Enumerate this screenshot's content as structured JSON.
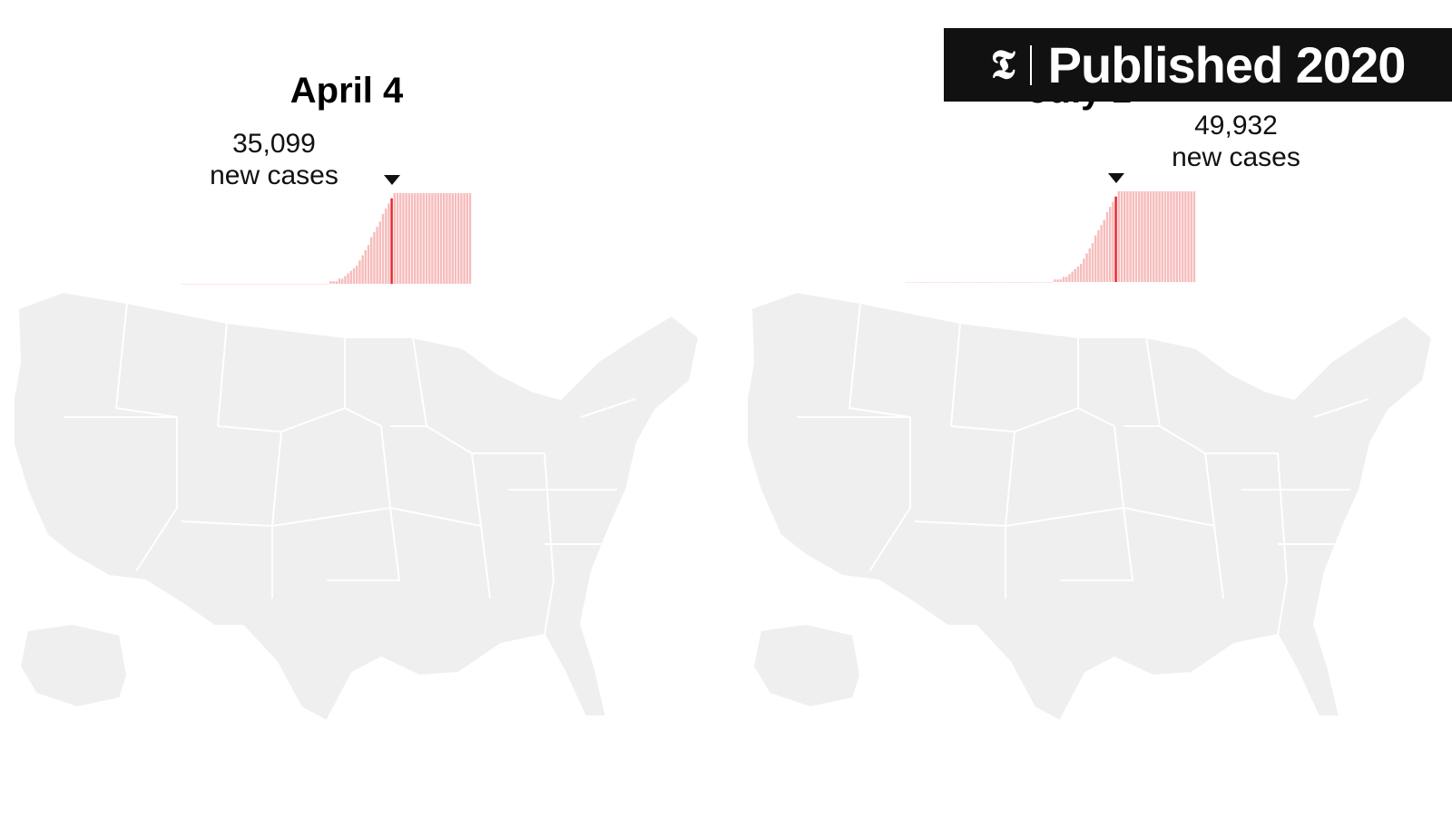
{
  "badge": {
    "logo_icon": "nyt-t-logo-icon",
    "text": "Published 2020"
  },
  "panels": [
    {
      "date": "April 4",
      "cases_value": "35,099",
      "cases_unit": "new cases",
      "colors": {
        "bar": "#f7bcbc",
        "highlight": "#e5252a",
        "spike_fill": "#f58f8f",
        "spike_stroke": "#e5252a",
        "land": "#efefef",
        "border": "#ffffff"
      },
      "daily_bars": [
        0,
        0,
        0,
        0,
        0,
        0,
        0,
        0,
        0,
        0,
        0,
        0,
        0,
        0,
        0,
        0,
        0,
        0,
        0,
        0,
        0,
        0,
        0,
        0,
        0,
        0,
        0,
        0,
        0,
        0,
        0,
        0,
        0,
        0,
        0,
        0,
        0,
        0,
        0,
        0,
        0,
        0,
        0,
        0,
        0,
        0,
        0,
        0,
        0,
        0,
        0,
        1,
        1,
        1,
        2,
        2,
        3,
        4,
        5,
        6,
        7,
        9,
        11,
        13,
        15,
        18,
        20,
        22,
        24,
        27,
        29,
        31,
        33,
        35,
        35,
        35,
        35,
        35,
        35,
        35,
        35,
        35,
        35,
        35,
        35,
        35,
        35,
        35,
        35,
        35,
        35,
        35,
        35,
        35,
        35,
        35,
        35,
        35,
        35,
        35
      ],
      "highlight_index": 72,
      "spikes": []
    },
    {
      "date": "July 1",
      "cases_value": "49,932",
      "cases_unit": "new cases",
      "colors": {
        "bar": "#f7bcbc",
        "highlight": "#e5252a",
        "spike_fill": "#f58f8f",
        "spike_stroke": "#e5252a",
        "land": "#efefef",
        "border": "#ffffff"
      },
      "daily_bars": [
        0,
        0,
        0,
        0,
        0,
        0,
        0,
        0,
        0,
        0,
        0,
        0,
        0,
        0,
        0,
        0,
        0,
        0,
        0,
        0,
        0,
        0,
        0,
        0,
        0,
        0,
        0,
        0,
        0,
        0,
        0,
        0,
        0,
        0,
        0,
        0,
        0,
        0,
        0,
        0,
        0,
        0,
        0,
        0,
        0,
        0,
        0,
        0,
        0,
        0,
        0,
        1,
        1,
        1,
        2,
        2,
        3,
        4,
        5,
        6,
        7,
        9,
        11,
        13,
        15,
        18,
        20,
        22,
        24,
        27,
        29,
        31,
        33,
        35,
        35,
        35,
        35,
        35,
        35,
        35,
        35,
        35,
        35,
        35,
        35,
        35,
        35,
        35,
        35,
        35,
        35,
        35,
        35,
        35,
        35,
        35,
        35,
        35,
        35,
        35
      ],
      "highlight_index": 72,
      "spikes": []
    }
  ]
}
